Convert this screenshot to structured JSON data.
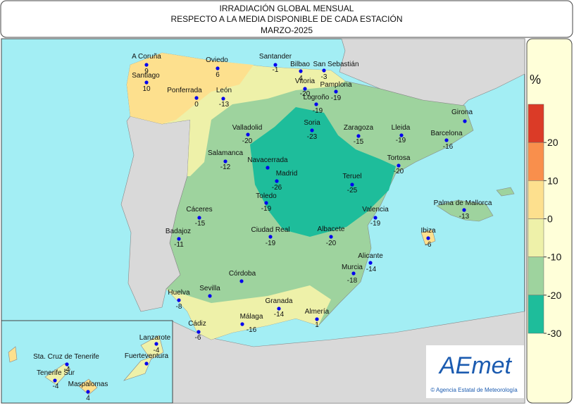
{
  "header": {
    "lines": [
      "IRRADIACIÓN GLOBAL MENSUAL",
      "RESPECTO A LA MEDIA DISPONIBLE DE CADA ESTACIÓN",
      "MARZO-2025"
    ]
  },
  "stations": [
    {
      "name": "A Coruña",
      "value": 9
    },
    {
      "name": "Santiago",
      "value": 10
    },
    {
      "name": "Oviedo",
      "value": 6
    },
    {
      "name": "Santander",
      "value": -1
    },
    {
      "name": "Bilbao",
      "value": 4
    },
    {
      "name": "San Sebastián",
      "value": -3
    },
    {
      "name": "Vitoria",
      "value": -20
    },
    {
      "name": "Pamplona",
      "value": -19
    },
    {
      "name": "Logroño",
      "value": -19
    },
    {
      "name": "Ponferrada",
      "value": 0
    },
    {
      "name": "León",
      "value": -13
    },
    {
      "name": "Girona"
    },
    {
      "name": "Soria",
      "value": -23
    },
    {
      "name": "Valladolid",
      "value": -20
    },
    {
      "name": "Zaragoza",
      "value": -15
    },
    {
      "name": "Lleida",
      "value": -19
    },
    {
      "name": "Barcelona",
      "value": -16
    },
    {
      "name": "Salamanca",
      "value": -12
    },
    {
      "name": "Navacerrada"
    },
    {
      "name": "Tortosa",
      "value": -20
    },
    {
      "name": "Madrid",
      "value": -26
    },
    {
      "name": "Teruel",
      "value": -25
    },
    {
      "name": "Toledo",
      "value": -19
    },
    {
      "name": "Palma de Mallorca",
      "value": -13
    },
    {
      "name": "Cáceres",
      "value": -15
    },
    {
      "name": "Valencia",
      "value": -19
    },
    {
      "name": "Ciudad Real",
      "value": -19
    },
    {
      "name": "Albacete",
      "value": -20
    },
    {
      "name": "Badajoz",
      "value": -11
    },
    {
      "name": "Ibiza",
      "value": -6
    },
    {
      "name": "Alicante",
      "value": -14
    },
    {
      "name": "Murcia",
      "value": -18
    },
    {
      "name": "Córdoba"
    },
    {
      "name": "Huelva",
      "value": -8
    },
    {
      "name": "Sevilla"
    },
    {
      "name": "Granada",
      "value": -14
    },
    {
      "name": "Almería",
      "value": 1
    },
    {
      "name": "Málaga",
      "value": -16
    },
    {
      "name": "Cádiz",
      "value": -6
    },
    {
      "name": "Lanzarote",
      "value": -4
    },
    {
      "name": "Fuerteventura"
    },
    {
      "name": "Sta. Cruz de Tenerife",
      "value": -4
    },
    {
      "name": "Tenerife Sur",
      "value": -4
    },
    {
      "name": "Maspalomas",
      "value": 4
    }
  ],
  "legend": {
    "unit": "%",
    "range": [
      -30,
      30
    ],
    "ticks": [
      20,
      10,
      0,
      -10,
      -20,
      -30
    ],
    "bands": [
      {
        "min": 20,
        "max": 30,
        "color": "#db3b27"
      },
      {
        "min": 10,
        "max": 20,
        "color": "#f98f4c"
      },
      {
        "min": 0,
        "max": 10,
        "color": "#fde08e"
      },
      {
        "min": -10,
        "max": 0,
        "color": "#eef1a9"
      },
      {
        "min": -20,
        "max": -10,
        "color": "#9ed39e"
      },
      {
        "min": -30,
        "max": -20,
        "color": "#1ebd9b"
      }
    ]
  },
  "logo": {
    "name": "AEmet",
    "caption": "© Agencia Estatal de Meteorología"
  }
}
